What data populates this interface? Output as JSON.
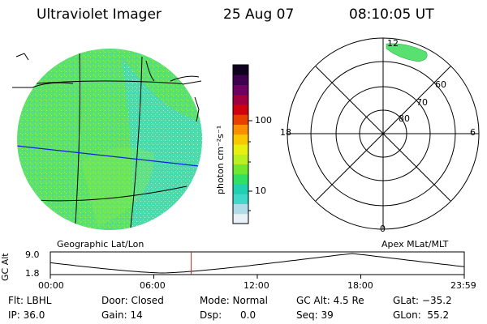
{
  "header": {
    "title": "Ultraviolet Imager",
    "date": "25 Aug 07",
    "time": "08:10:05 UT"
  },
  "colorbar": {
    "unit_label": "photon cm⁻²s⁻¹",
    "tick_100": "100",
    "tick_10": "10",
    "colors": [
      "#e8f0f8",
      "#b0dce8",
      "#40d8c8",
      "#20d0b0",
      "#30e060",
      "#70e830",
      "#b8f020",
      "#e8f010",
      "#f8c800",
      "#f89000",
      "#e84000",
      "#d00010",
      "#a00040",
      "#700060",
      "#400050",
      "#100020"
    ]
  },
  "left_panel": {
    "caption": "Geographic Lat/Lon",
    "disk_color": "#58e070"
  },
  "right_panel": {
    "caption": "Apex MLat/MLT",
    "label_12": "12",
    "label_0": "0",
    "label_18": "18",
    "label_6": "6",
    "label_60": "60",
    "label_70": "70",
    "label_80": "80"
  },
  "timeline": {
    "ylabel": "GC Alt",
    "y_top": "9.0",
    "y_bottom": "1.8",
    "x_ticks": [
      "00:00",
      "06:00",
      "12:00",
      "18:00",
      "23:59"
    ],
    "marker_time_hours": 8.17
  },
  "footer": {
    "flt": "Flt: LBHL",
    "ip": "IP: 36.0",
    "door": "Door: Closed",
    "gain": "Gain: 14",
    "mode": "Mode: Normal",
    "dsp": "Dsp:      0.0",
    "gcalt": "GC Alt: 4.5 Re",
    "seq": "Seq: 39",
    "glat": "GLat: −35.2",
    "glon": "GLon:  55.2"
  }
}
